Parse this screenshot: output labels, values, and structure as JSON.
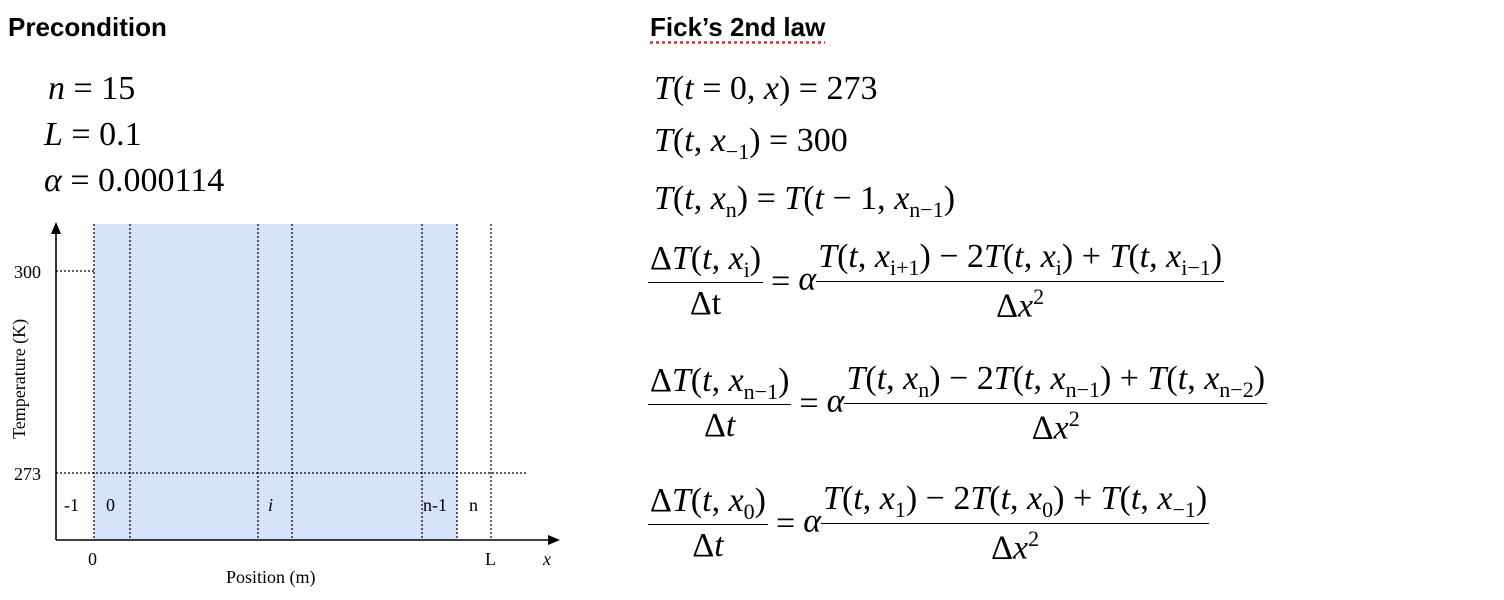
{
  "left_heading": "Precondition",
  "right_heading": "Fick’s 2nd law",
  "preconditions": [
    {
      "name": "n",
      "value": "15"
    },
    {
      "name": "L",
      "value": "0.1"
    },
    {
      "name": "α",
      "value": "0.000114"
    }
  ],
  "diagram": {
    "y_axis_label": "Temperature (K)",
    "x_axis_label": "Position (m)",
    "x_axis_symbol": "x",
    "y_ticks": [
      "300",
      "273"
    ],
    "x_ticks": [
      "0",
      "L"
    ],
    "cell_labels": [
      "-1",
      "0",
      "i",
      "n-1",
      "n"
    ],
    "fill_color": "#d6e3fa"
  },
  "equations": {
    "initial": {
      "lhs": "T(t = 0, x) ",
      "rhs": "273"
    },
    "left_boundary": {
      "lhs_pre": "T(t, x",
      "lhs_sub": "−1",
      "lhs_post": ")",
      "rhs": "300"
    },
    "right_boundary": {
      "lhs_pre": "T(t, x",
      "lhs_sub": "n",
      "lhs_post": ")",
      "rhs_pre": "T(t − 1, x",
      "rhs_sub": "n−1",
      "rhs_post": ")"
    },
    "interior": {
      "i": "i",
      "ip1": "i+1",
      "im1": "i−1"
    },
    "last": {
      "n1": "n−1",
      "n": "n",
      "n2": "n−2"
    },
    "first": {
      "z": "0",
      "one": "1",
      "m1": "−1"
    },
    "delta_t": "Δt",
    "delta_x": "Δx",
    "alpha": "α"
  }
}
